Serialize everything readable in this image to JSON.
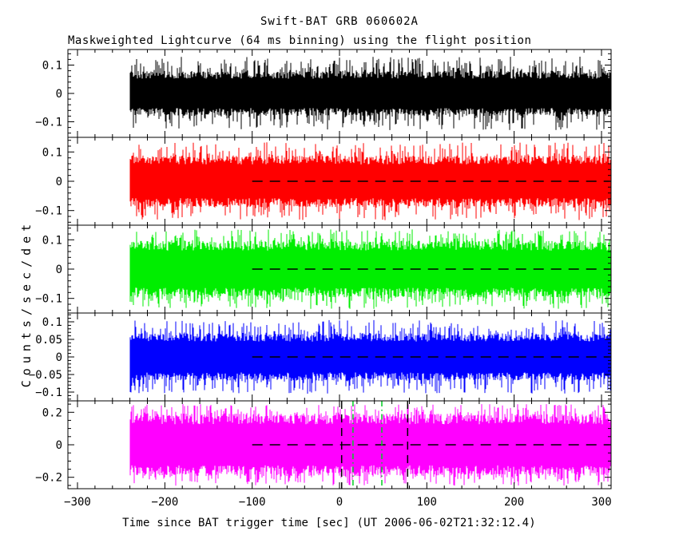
{
  "title": "Swift-BAT GRB 060602A",
  "subtitle": "Maskweighted Lightcurve (64 ms binning) using the flight position",
  "ylabel": "Counts/sec/det",
  "xlabel": "Time since BAT trigger time [sec] (UT 2006-06-02T21:32:12.4)",
  "chart_data": {
    "type": "line",
    "title": "Swift-BAT GRB 060602A",
    "subtitle": "Maskweighted Lightcurve (64 ms binning) using the flight position",
    "xlabel": "Time since BAT trigger time [sec] (UT 2006-06-02T21:32:12.4)",
    "ylabel": "Counts/sec/det",
    "layout": "5 vertically stacked panels sharing one x-axis, framed boxes with inward ticks, no grid, no legend",
    "xlim": [
      -311,
      311
    ],
    "xtick_values": [
      -300,
      -200,
      -100,
      0,
      100,
      200,
      300
    ],
    "xtick_labels": [
      "−300",
      "−200",
      "−100",
      "0",
      "100",
      "200",
      "300"
    ],
    "xtick_minor_step": 20,
    "binning_sec": 0.064,
    "data_t_start": -240,
    "data_t_end": 311,
    "panels": [
      {
        "index": 1,
        "color": "#000000",
        "ylim": [
          -0.155,
          0.155
        ],
        "ytick_values": [
          0.1,
          0,
          -0.1
        ],
        "ytick_labels": [
          "0.1",
          "0",
          "−0.1"
        ],
        "ytick_minor_step": 0.02,
        "noise_core_amp": 0.072,
        "noise_peak_amp": 0.13,
        "zero_line": null,
        "vlines": []
      },
      {
        "index": 2,
        "color": "#ff0000",
        "ylim": [
          -0.15,
          0.15
        ],
        "ytick_values": [
          0.1,
          0,
          -0.1
        ],
        "ytick_labels": [
          "0.1",
          "0",
          "−0.1"
        ],
        "ytick_minor_step": 0.02,
        "noise_core_amp": 0.08,
        "noise_peak_amp": 0.133,
        "zero_line": {
          "y": 0,
          "t_start": -100,
          "t_end": 311,
          "style": "dashed",
          "color": "#000000"
        },
        "vlines": []
      },
      {
        "index": 3,
        "color": "#00ee00",
        "ylim": [
          -0.15,
          0.15
        ],
        "ytick_values": [
          0.1,
          0,
          -0.1
        ],
        "ytick_labels": [
          "0.1",
          "0",
          "−0.1"
        ],
        "ytick_minor_step": 0.02,
        "noise_core_amp": 0.088,
        "noise_peak_amp": 0.136,
        "zero_line": {
          "y": 0,
          "t_start": -100,
          "t_end": 311,
          "style": "dashed",
          "color": "#000000"
        },
        "vlines": []
      },
      {
        "index": 4,
        "color": "#0000ff",
        "ylim": [
          -0.125,
          0.125
        ],
        "ytick_values": [
          0.1,
          0.05,
          0,
          -0.05,
          -0.1
        ],
        "ytick_labels": [
          "0.1",
          "0.05",
          "0",
          "−0.05",
          "−0.1"
        ],
        "ytick_minor_step": 0.01,
        "noise_core_amp": 0.061,
        "noise_peak_amp": 0.105,
        "zero_line": {
          "y": 0,
          "t_start": -100,
          "t_end": 311,
          "style": "dashed",
          "color": "#000000"
        },
        "vlines": []
      },
      {
        "index": 5,
        "color": "#ff00ff",
        "ylim": [
          -0.27,
          0.27
        ],
        "ytick_values": [
          0.2,
          0,
          -0.2
        ],
        "ytick_labels": [
          "0.2",
          "0",
          "−0.2"
        ],
        "ytick_minor_step": 0.05,
        "noise_core_amp": 0.175,
        "noise_peak_amp": 0.252,
        "zero_line": {
          "y": 0,
          "t_start": -100,
          "t_end": 311,
          "style": "dashed",
          "color": "#000000"
        },
        "vlines": [
          {
            "t": 2.5,
            "style": "dashed",
            "color": "#000000"
          },
          {
            "t": 15.5,
            "style": "dash-dot",
            "color": "#00cc22"
          },
          {
            "t": 48.5,
            "style": "dash-dot",
            "color": "#00cc22"
          },
          {
            "t": 78.0,
            "style": "dashed",
            "color": "#000000"
          }
        ]
      }
    ]
  }
}
